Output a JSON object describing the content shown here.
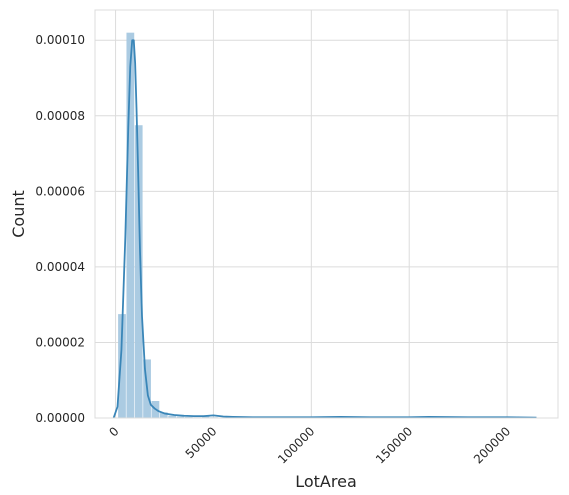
{
  "chart_data": {
    "type": "histogram",
    "title": "",
    "xlabel": "LotArea",
    "ylabel": "Count",
    "xlim": [
      -10500,
      226000
    ],
    "ylim": [
      0,
      0.000108
    ],
    "grid": true,
    "x_ticks": [
      0,
      50000,
      100000,
      150000,
      200000
    ],
    "x_tick_labels": [
      "0",
      "50000",
      "100000",
      "150000",
      "200000"
    ],
    "y_ticks": [
      0,
      2e-05,
      4e-05,
      6e-05,
      8e-05,
      0.0001
    ],
    "y_tick_labels": [
      "0.00000",
      "0.00002",
      "0.00004",
      "0.00006",
      "0.00008",
      "0.00010"
    ],
    "colors": {
      "bar": "#a6c8e0",
      "line": "#3a86b8",
      "grid": "#dcdcdc",
      "text": "#262626"
    },
    "bins": {
      "start": 1300,
      "width": 4270,
      "heights": [
        2.75e-05,
        0.000102,
        7.75e-05,
        1.55e-05,
        4.5e-06,
        1.5e-06,
        6e-07,
        4e-07,
        3e-07,
        2e-07,
        4e-07,
        2e-07,
        1e-07,
        1e-07,
        1e-07,
        1e-07,
        1e-07,
        1e-07,
        1e-07,
        1e-07,
        1e-07,
        1e-07,
        1e-07,
        1e-07,
        1e-07,
        1e-07,
        1e-07,
        1e-07,
        1e-07,
        1e-07,
        1e-07,
        1e-07,
        1e-07,
        1e-07,
        1e-07,
        1e-07,
        1e-07,
        1e-07,
        1e-07,
        1e-07,
        1e-07,
        1e-07,
        1e-07,
        1e-07,
        1e-07,
        1e-07,
        1e-07,
        1e-07,
        1e-07,
        1e-07
      ]
    },
    "kde": {
      "x": [
        -1000,
        1000,
        3000,
        5000,
        6500,
        7500,
        8500,
        9300,
        10000,
        10700,
        11500,
        12500,
        13500,
        15000,
        16500,
        18000,
        20000,
        22000,
        25000,
        30000,
        35000,
        40000,
        45000,
        50000,
        55000,
        60000,
        70000,
        80000,
        100000,
        115000,
        130000,
        150000,
        160000,
        180000,
        200000,
        215000
      ],
      "y": [
        0.0,
        3e-06,
        1.8e-05,
        4.8e-05,
        7.7e-05,
        9.3e-05,
        0.0001,
        0.0001,
        9.4e-05,
        8.2e-05,
        6.6e-05,
        4.4e-05,
        2.7e-05,
        1.3e-05,
        6e-06,
        3.5e-06,
        2.5e-06,
        1.8e-06,
        1.2e-06,
        8e-07,
        6e-07,
        5e-07,
        5e-07,
        7e-07,
        4e-07,
        3e-07,
        2e-07,
        2e-07,
        2e-07,
        3e-07,
        2e-07,
        2e-07,
        3e-07,
        2e-07,
        2e-07,
        1e-07
      ]
    }
  }
}
